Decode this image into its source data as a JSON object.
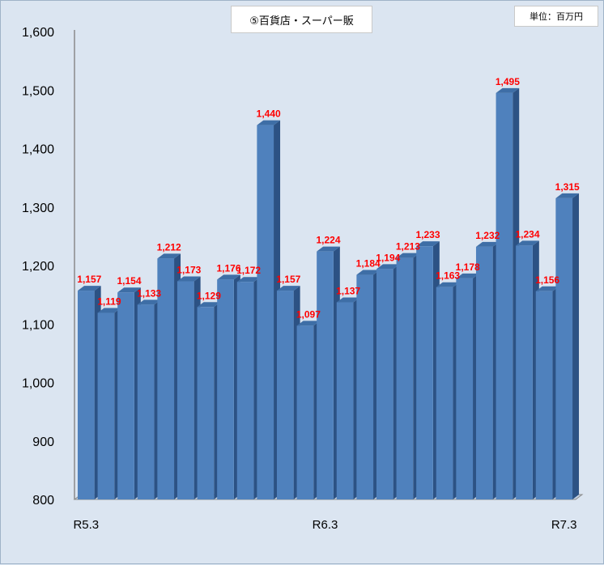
{
  "title": "⑤百貨店・スーパー販",
  "unit_label": "単位：百万円",
  "colors": {
    "background": "#dbe5f1",
    "bar_front": "#4f81bd",
    "bar_side": "#2c5284",
    "bar_top": "#3e6ea6",
    "data_label": "#ff0000",
    "axis": "#8a8a8a"
  },
  "chart_data": {
    "type": "bar",
    "title": "⑤百貨店・スーパー販",
    "unit": "単位：百万円",
    "ylim": [
      800,
      1600
    ],
    "y_ticks": [
      800,
      900,
      1000,
      1100,
      1200,
      1300,
      1400,
      1500,
      1600
    ],
    "y_tick_labels": [
      "800",
      "900",
      "1,000",
      "1,100",
      "1,200",
      "1,300",
      "1,400",
      "1,500",
      "1,600"
    ],
    "x_labels": [
      {
        "index": 0,
        "label": "R5.3"
      },
      {
        "index": 12,
        "label": "R6.3"
      },
      {
        "index": 24,
        "label": "R7.3"
      }
    ],
    "values": [
      1157,
      1119,
      1154,
      1133,
      1212,
      1173,
      1129,
      1176,
      1172,
      1440,
      1157,
      1097,
      1224,
      1137,
      1184,
      1194,
      1213,
      1233,
      1163,
      1178,
      1232,
      1495,
      1234,
      1156,
      1315
    ],
    "value_labels": [
      "1,157",
      "1,119",
      "1,154",
      "1,133",
      "1,212",
      "1,173",
      "1,129",
      "1,176",
      "1,172",
      "1,440",
      "1,157",
      "1,097",
      "1,224",
      "1,137",
      "1,184",
      "1,194",
      "1,213",
      "1,233",
      "1,163",
      "1,178",
      "1,232",
      "1,495",
      "1,234",
      "1,156",
      "1,315"
    ],
    "grid": false,
    "legend": "none"
  }
}
